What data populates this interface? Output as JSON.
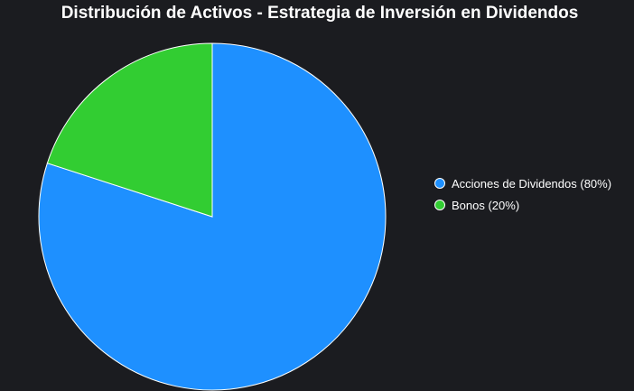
{
  "chart_data": {
    "type": "pie",
    "title": "Distribución de Activos - Estrategia de Inversión en Dividendos",
    "categories": [
      "Acciones de Dividendos",
      "Bonos"
    ],
    "values": [
      80,
      20
    ],
    "colors": [
      "#1e90ff",
      "#32cd32"
    ],
    "legend": {
      "placement": "right",
      "entries": [
        "Acciones de Dividendos (80%)",
        "Bonos (20%)"
      ]
    },
    "start_angle": "top",
    "direction": "clockwise"
  },
  "colors": {
    "background": "#1b1c20",
    "text": "#ffffff",
    "slice_border": "#ffffff"
  }
}
